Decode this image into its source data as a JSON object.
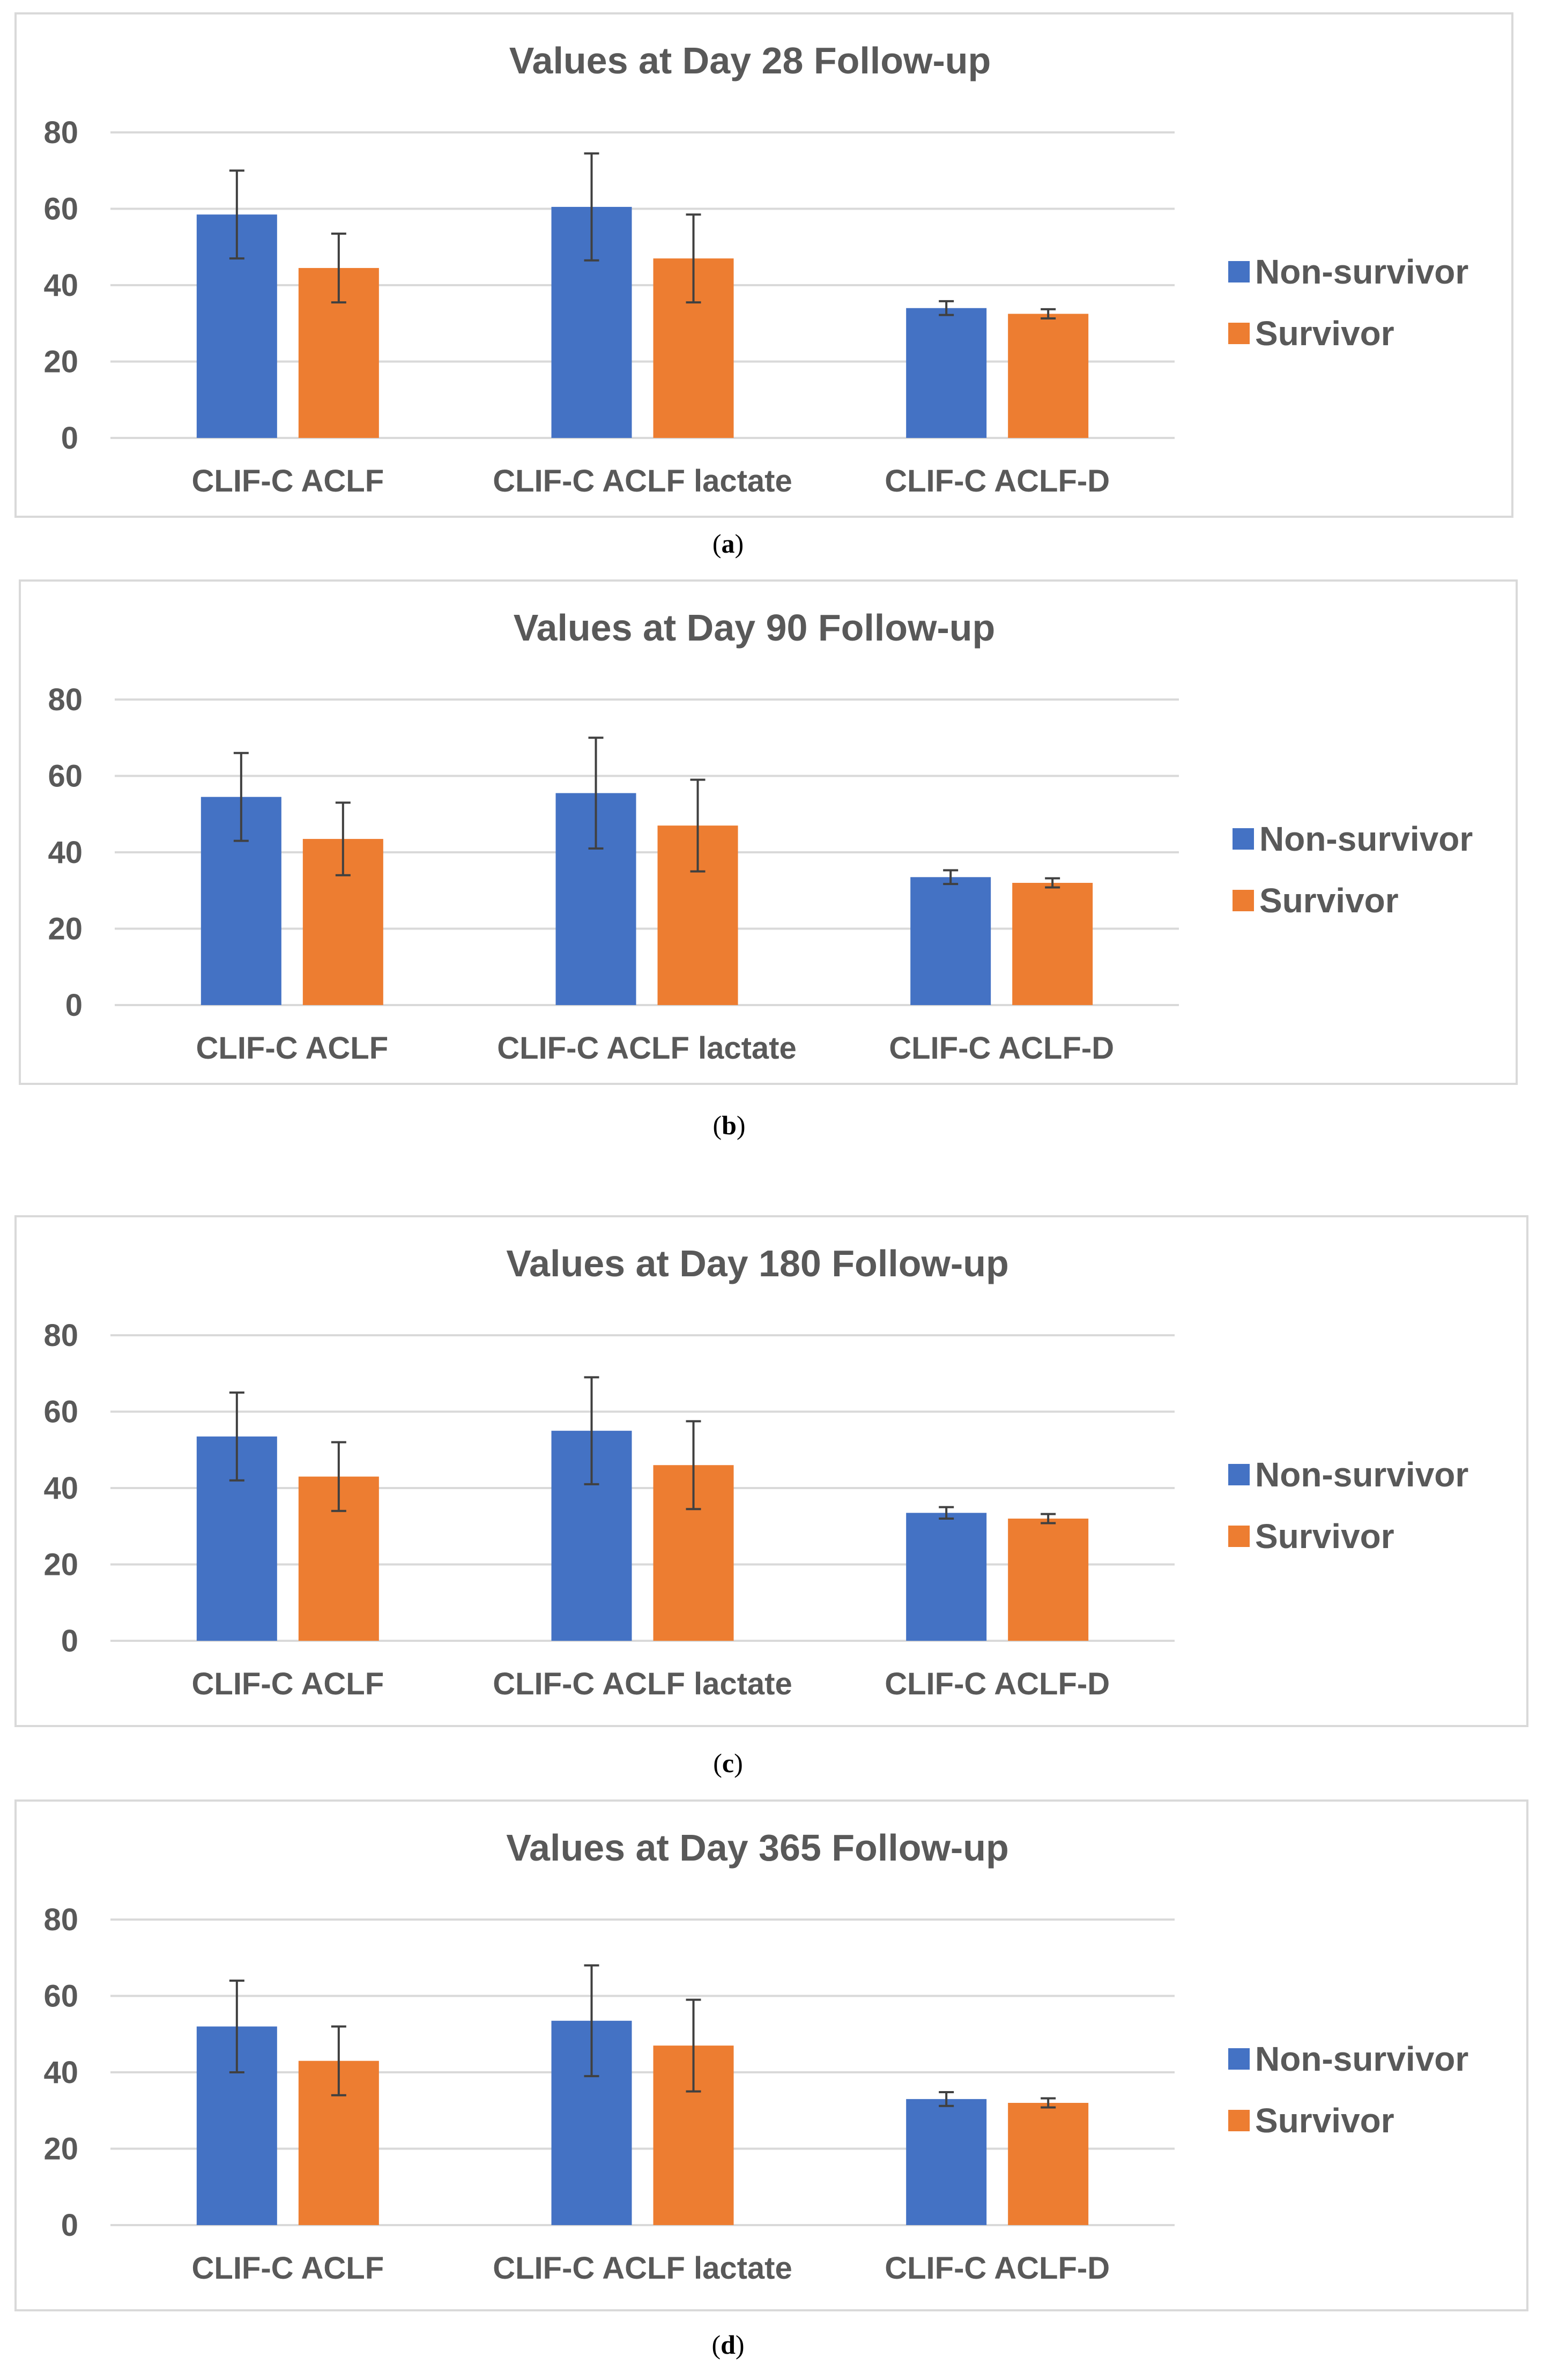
{
  "colors": {
    "non_survivor": "#4472c4",
    "survivor": "#ed7d31",
    "grid": "#d9d9d9",
    "text": "#595959",
    "error_bar": "#404040"
  },
  "chart_data": [
    {
      "type": "bar",
      "caption_letter": "a",
      "title": "Values at Day 28 Follow-up",
      "categories": [
        "CLIF-C ACLF",
        "CLIF-C ACLF lactate",
        "CLIF-C ACLF-D"
      ],
      "yticks": [
        "0",
        "20",
        "40",
        "60",
        "80"
      ],
      "ylim": [
        0,
        80
      ],
      "legend_position": "right",
      "series": [
        {
          "name": "Non-survivor",
          "values": [
            58.5,
            60.5,
            34
          ],
          "errors": [
            11.5,
            14,
            1.8
          ]
        },
        {
          "name": "Survivor",
          "values": [
            44.5,
            47,
            32.5
          ],
          "errors": [
            9,
            11.5,
            1.2
          ]
        }
      ]
    },
    {
      "type": "bar",
      "caption_letter": "b",
      "title": "Values at Day 90 Follow-up",
      "categories": [
        "CLIF-C ACLF",
        "CLIF-C ACLF lactate",
        "CLIF-C ACLF-D"
      ],
      "yticks": [
        "0",
        "20",
        "40",
        "60",
        "80"
      ],
      "ylim": [
        0,
        80
      ],
      "legend_position": "right",
      "series": [
        {
          "name": "Non-survivor",
          "values": [
            54.5,
            55.5,
            33.5
          ],
          "errors": [
            11.5,
            14.5,
            1.8
          ]
        },
        {
          "name": "Survivor",
          "values": [
            43.5,
            47,
            32
          ],
          "errors": [
            9.5,
            12,
            1.2
          ]
        }
      ]
    },
    {
      "type": "bar",
      "caption_letter": "c",
      "title": "Values at Day 180 Follow-up",
      "categories": [
        "CLIF-C ACLF",
        "CLIF-C ACLF lactate",
        "CLIF-C ACLF-D"
      ],
      "yticks": [
        "0",
        "20",
        "40",
        "60",
        "80"
      ],
      "ylim": [
        0,
        80
      ],
      "legend_position": "right",
      "series": [
        {
          "name": "Non-survivor",
          "values": [
            53.5,
            55,
            33.5
          ],
          "errors": [
            11.5,
            14,
            1.5
          ]
        },
        {
          "name": "Survivor",
          "values": [
            43,
            46,
            32
          ],
          "errors": [
            9,
            11.5,
            1.2
          ]
        }
      ]
    },
    {
      "type": "bar",
      "caption_letter": "d",
      "title": "Values at Day 365 Follow-up",
      "categories": [
        "CLIF-C ACLF",
        "CLIF-C ACLF lactate",
        "CLIF-C ACLF-D"
      ],
      "yticks": [
        "0",
        "20",
        "40",
        "60",
        "80"
      ],
      "ylim": [
        0,
        80
      ],
      "legend_position": "right",
      "series": [
        {
          "name": "Non-survivor",
          "values": [
            52,
            53.5,
            33
          ],
          "errors": [
            12,
            14.5,
            1.8
          ]
        },
        {
          "name": "Survivor",
          "values": [
            43,
            47,
            32
          ],
          "errors": [
            9,
            12,
            1.2
          ]
        }
      ]
    }
  ]
}
